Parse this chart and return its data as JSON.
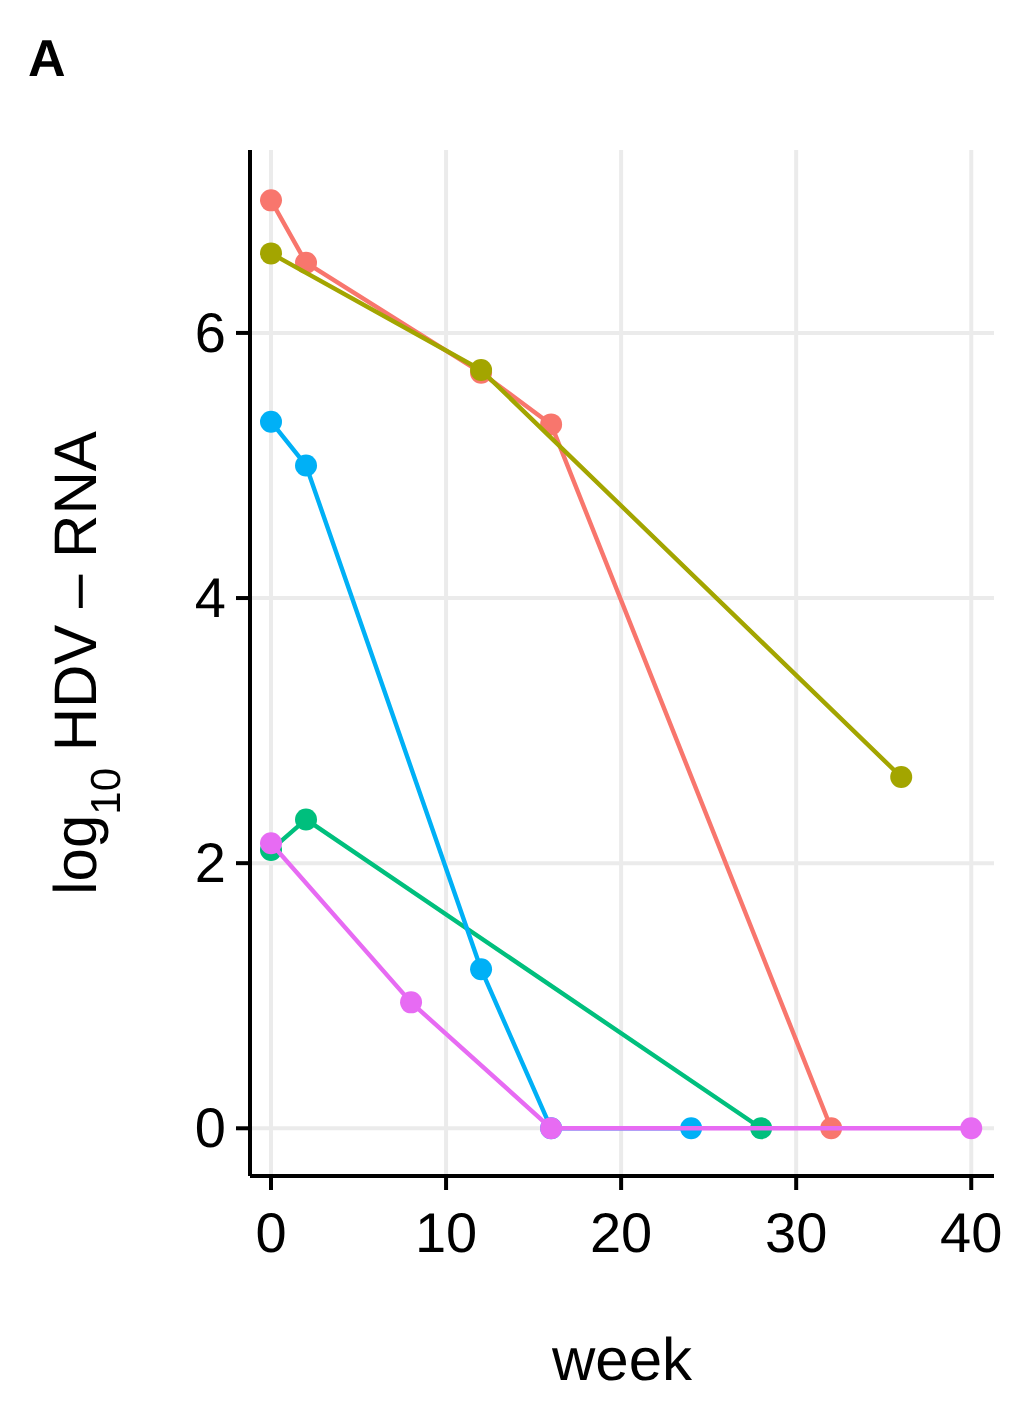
{
  "chart_data": {
    "type": "line",
    "title": "A",
    "xlabel": "week",
    "ylabel": "log$_{10}$ HDV – RNA",
    "marker": "circle",
    "grid": true,
    "xlim": [
      -1.2,
      41.3
    ],
    "ylim": [
      -0.36,
      7.38
    ],
    "xticks": [
      0,
      10,
      20,
      30,
      40
    ],
    "yticks": [
      0,
      2,
      4,
      6
    ],
    "series": [
      {
        "color": "#f8766d",
        "x": [
          0,
          2,
          12,
          16,
          32
        ],
        "values": [
          7.0,
          6.53,
          5.7,
          5.31,
          0
        ]
      },
      {
        "color": "#a3a500",
        "x": [
          0,
          12,
          36
        ],
        "values": [
          6.6,
          5.72,
          2.65
        ]
      },
      {
        "color": "#00bf7d",
        "x": [
          0,
          2,
          28
        ],
        "values": [
          2.1,
          2.33,
          0
        ]
      },
      {
        "color": "#00b0f6",
        "x": [
          0,
          2,
          12,
          16,
          24
        ],
        "values": [
          5.33,
          5.0,
          1.2,
          0,
          0
        ]
      },
      {
        "color": "#e76bf3",
        "x": [
          0,
          8,
          16,
          40
        ],
        "values": [
          2.15,
          0.95,
          0,
          0
        ]
      }
    ]
  }
}
